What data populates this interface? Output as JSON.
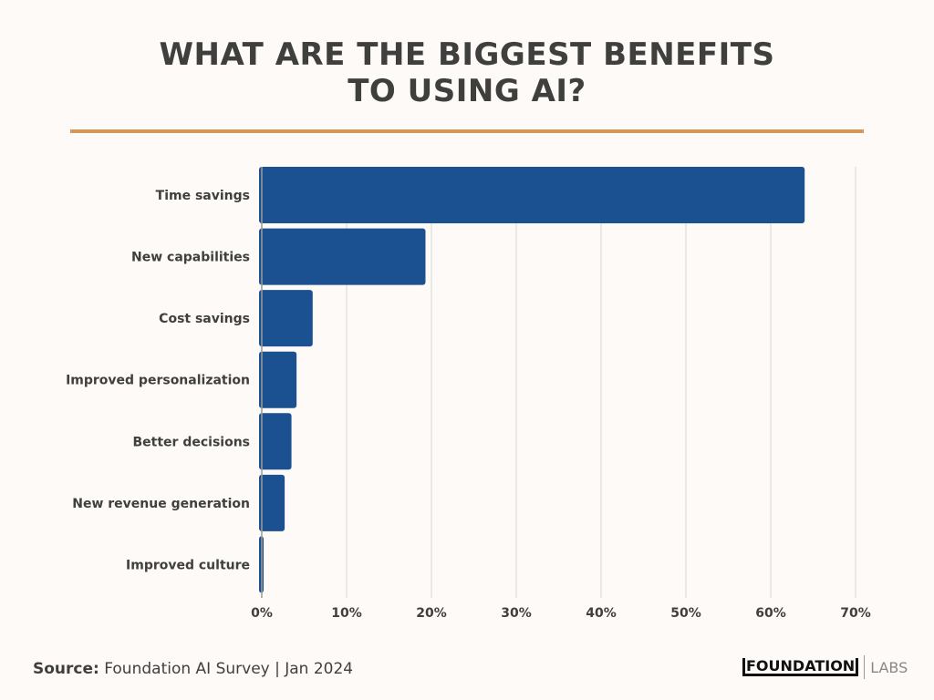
{
  "chart_data": {
    "type": "bar",
    "orientation": "horizontal",
    "title": [
      "WHAT ARE THE BIGGEST BENEFITS",
      "TO USING AI?"
    ],
    "categories": [
      "Time savings",
      "New capabilities",
      "Cost savings",
      "Improved personalization",
      "Better decisions",
      "New revenue generation",
      "Improved culture"
    ],
    "values": [
      64,
      19.3,
      6,
      4.1,
      3.5,
      2.7,
      0.2
    ],
    "xlim": [
      0,
      70
    ],
    "xticks": [
      "0%",
      "10%",
      "20%",
      "30%",
      "40%",
      "50%",
      "60%",
      "70%"
    ],
    "grid": true,
    "bar_color": "#1b5190",
    "accent_color": "#d19a5a"
  },
  "footer": {
    "source_label": "Source:",
    "source_text": "Foundation AI Survey | Jan 2024",
    "logo_main": "FOUNDATION",
    "logo_sub": "LABS"
  }
}
